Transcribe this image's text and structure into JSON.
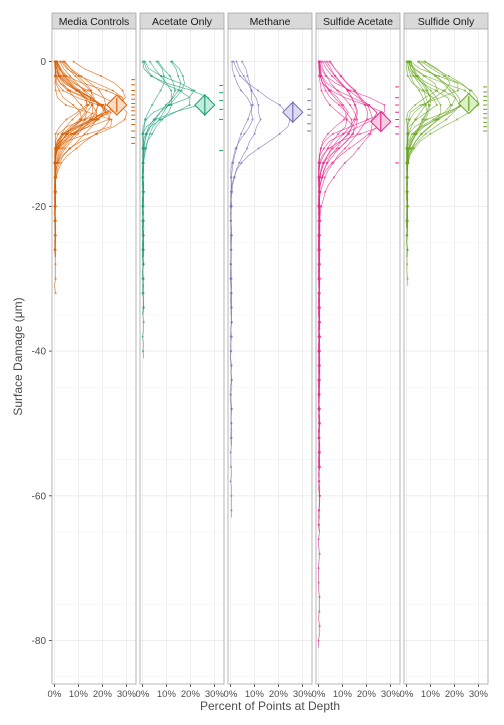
{
  "chart_data": {
    "type": "line",
    "xlabel": "Percent of Points at Depth",
    "ylabel": "Surface  Damage  (μm)",
    "ylim": [
      -86,
      4.5
    ],
    "xlim": [
      -1,
      34
    ],
    "y_ticks": [
      0,
      -20,
      -40,
      -60,
      -80
    ],
    "x_ticks": [
      {
        "value": 0,
        "label": "0%"
      },
      {
        "value": 10,
        "label": "10%"
      },
      {
        "value": 20,
        "label": "20%"
      },
      {
        "value": 30,
        "label": "30%"
      }
    ],
    "grid": true,
    "colors": {
      "panel_strip_bg": "#d9d9d9",
      "panel_border": "#a6a6a6",
      "grid": "#ebebeb"
    },
    "panels": [
      {
        "name": "Media Controls",
        "color": "#d95f02",
        "fill": "#f9dcc4",
        "n_profiles": 22,
        "peak_depth": -6.5,
        "depth_spread": 2.2,
        "max_depth": -32.5,
        "mean_depth": -6.0,
        "depth_iqr": [
          -7.0,
          -5.0
        ],
        "rug": [
          -2.5,
          -3.2,
          -4.0,
          -4.6,
          -5.2,
          -5.8,
          -6.3,
          -6.8,
          -7.4,
          -8.0,
          -8.7,
          -9.6,
          -10.5,
          -11.3
        ]
      },
      {
        "name": "Acetate Only",
        "color": "#1b9e77",
        "fill": "#c5ebdd",
        "n_profiles": 8,
        "peak_depth": -4.0,
        "depth_spread": 2.4,
        "max_depth": -41.0,
        "mean_depth": -6.0,
        "depth_iqr": [
          -7.5,
          -4.5
        ],
        "rug": [
          -3.3,
          -4.3,
          -5.4,
          -6.6,
          -8.0,
          -12.3
        ]
      },
      {
        "name": "Methane",
        "color": "#7570b3",
        "fill": "#dedcf0",
        "n_profiles": 4,
        "peak_depth": -7.0,
        "depth_spread": 3.0,
        "max_depth": -63.5,
        "mean_depth": -7.0,
        "depth_iqr": [
          -8.5,
          -5.5
        ],
        "rug": [
          -3.8,
          -5.4,
          -6.6,
          -7.4,
          -8.6,
          -9.6
        ]
      },
      {
        "name": "Sulfide Acetate",
        "color": "#e7298a",
        "fill": "#f8cde3",
        "n_profiles": 13,
        "peak_depth": -7.5,
        "depth_spread": 3.2,
        "max_depth": -81.5,
        "mean_depth": -8.3,
        "depth_iqr": [
          -9.6,
          -7.0
        ],
        "rug": [
          -3.5,
          -5.0,
          -6.0,
          -7.0,
          -8.0,
          -9.0,
          -10.0,
          -14.0
        ]
      },
      {
        "name": "Sulfide Only",
        "color": "#66a61e",
        "fill": "#dcefc5",
        "n_profiles": 16,
        "peak_depth": -5.0,
        "depth_spread": 2.2,
        "max_depth": -31.0,
        "mean_depth": -5.8,
        "depth_iqr": [
          -6.8,
          -4.8
        ],
        "rug": [
          -3.5,
          -4.2,
          -4.8,
          -5.4,
          -6.0,
          -6.6,
          -7.2,
          -7.8,
          -8.4,
          -9.0,
          -9.6
        ]
      }
    ]
  }
}
